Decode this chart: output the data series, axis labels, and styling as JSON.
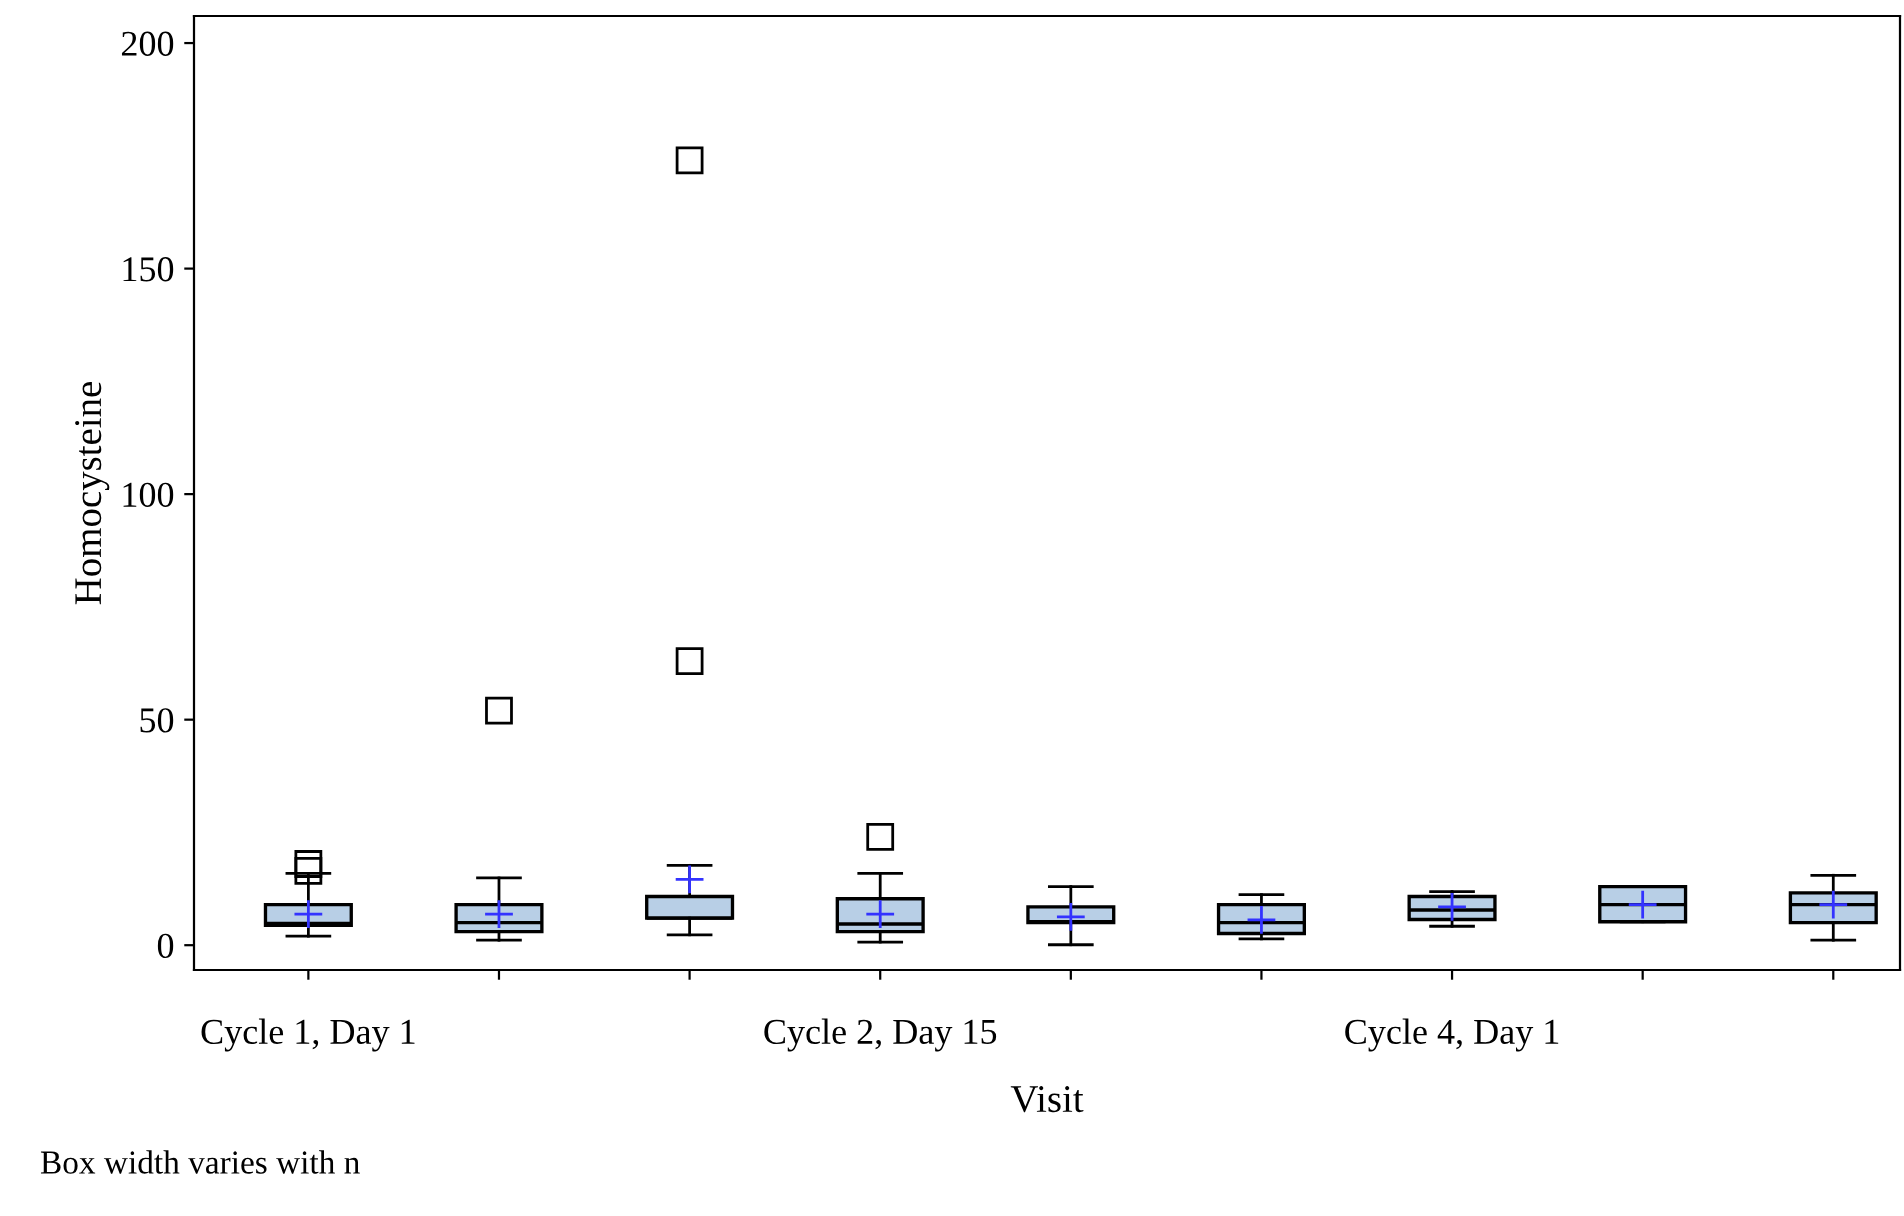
{
  "chart_data": {
    "type": "box",
    "xlabel": "Visit",
    "ylabel": "Homocysteine",
    "categories": [
      "Cycle 1, Day 1",
      null,
      null,
      "Cycle 2, Day 15",
      null,
      null,
      "Cycle 4, Day 1",
      null,
      null
    ],
    "ylim": [
      -5.5,
      206
    ],
    "yticks": [
      0,
      50,
      100,
      150,
      200
    ],
    "color": "#b8cfe6",
    "annotations": [
      "Box width varies with n"
    ],
    "boxes": [
      {
        "low": 2,
        "q1": 4.4,
        "median": 4.8,
        "q3": 9,
        "high": 15.9,
        "mean": 6.9,
        "outliers": [
          16.5,
          18
        ]
      },
      {
        "low": 1.1,
        "q1": 3,
        "median": 5,
        "q3": 9,
        "high": 14.9,
        "mean": 6.9,
        "outliers": [
          52
        ]
      },
      {
        "low": 2.3,
        "q1": 6,
        "median": 6,
        "q3": 10.8,
        "high": 17.7,
        "mean": 14.6,
        "outliers": [
          63,
          174
        ]
      },
      {
        "low": 0.7,
        "q1": 3,
        "median": 4.7,
        "q3": 10.3,
        "high": 15.9,
        "mean": 6.9,
        "outliers": [
          24
        ]
      },
      {
        "low": 0.1,
        "q1": 5,
        "median": 5.2,
        "q3": 8.5,
        "high": 13,
        "mean": 6.3
      },
      {
        "low": 1.4,
        "q1": 2.6,
        "median": 5,
        "q3": 9,
        "high": 11.2,
        "mean": 5.6
      },
      {
        "low": 4.2,
        "q1": 5.7,
        "median": 7.8,
        "q3": 10.8,
        "high": 11.9,
        "mean": 8.5
      },
      {
        "low": 5.2,
        "q1": 5.2,
        "median": 9,
        "q3": 13,
        "high": 13,
        "mean": 9
      },
      {
        "low": 1.1,
        "q1": 5,
        "median": 9,
        "q3": 11.6,
        "high": 15.5,
        "mean": 9
      }
    ]
  }
}
